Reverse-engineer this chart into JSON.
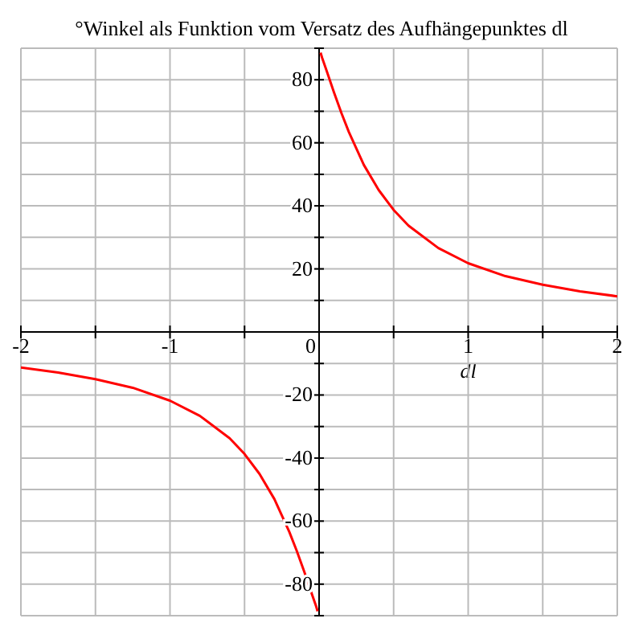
{
  "chart_data": {
    "type": "line",
    "title": "°Winkel als Funktion vom Versatz des Aufhängepunktes dl",
    "xlabel": "dl",
    "xlim": [
      -2,
      2
    ],
    "ylim": [
      -90,
      90
    ],
    "xticks": [
      -2,
      {
        "value": -1.5,
        "label": null
      },
      -1,
      {
        "value": -0.5,
        "label": null
      },
      0,
      {
        "value": 0.5,
        "label": null
      },
      1,
      {
        "value": 1.5,
        "label": null
      },
      2
    ],
    "yticks": [
      {
        "value": -90,
        "label": null
      },
      -80,
      {
        "value": -70,
        "label": null
      },
      -60,
      {
        "value": -50,
        "label": null
      },
      -40,
      {
        "value": -30,
        "label": null
      },
      -20,
      {
        "value": -10,
        "label": null
      },
      {
        "value": 0,
        "label": null
      },
      {
        "value": 10,
        "label": null
      },
      20,
      {
        "value": 30,
        "label": null
      },
      40,
      {
        "value": 50,
        "label": null
      },
      60,
      {
        "value": 70,
        "label": null
      },
      80,
      {
        "value": 90,
        "label": null
      }
    ],
    "grid": true,
    "marker": "none",
    "line_style": "solid",
    "series": [
      {
        "color": "#ff0000",
        "x": [
          0.01,
          0.02,
          0.05,
          0.1,
          0.15,
          0.2,
          0.3,
          0.4,
          0.5,
          0.6,
          0.8,
          1,
          1.25,
          1.5,
          1.75,
          2
        ],
        "values": [
          88.6,
          87,
          82.9,
          76,
          69.4,
          63.4,
          53,
          45,
          38.7,
          33.7,
          26.6,
          21.8,
          17.7,
          15,
          12.9,
          11.3
        ]
      },
      {
        "color": "#ff0000",
        "x": [
          -2,
          -1.75,
          -1.5,
          -1.25,
          -1,
          -0.8,
          -0.6,
          -0.5,
          -0.4,
          -0.3,
          -0.2,
          -0.15,
          -0.1,
          -0.05,
          -0.02,
          -0.01
        ],
        "values": [
          -11.3,
          -12.9,
          -15,
          -17.7,
          -21.8,
          -26.6,
          -33.7,
          -38.7,
          -45,
          -53,
          -63.4,
          -69.4,
          -76,
          -82.9,
          -87,
          -88.6
        ]
      }
    ]
  }
}
